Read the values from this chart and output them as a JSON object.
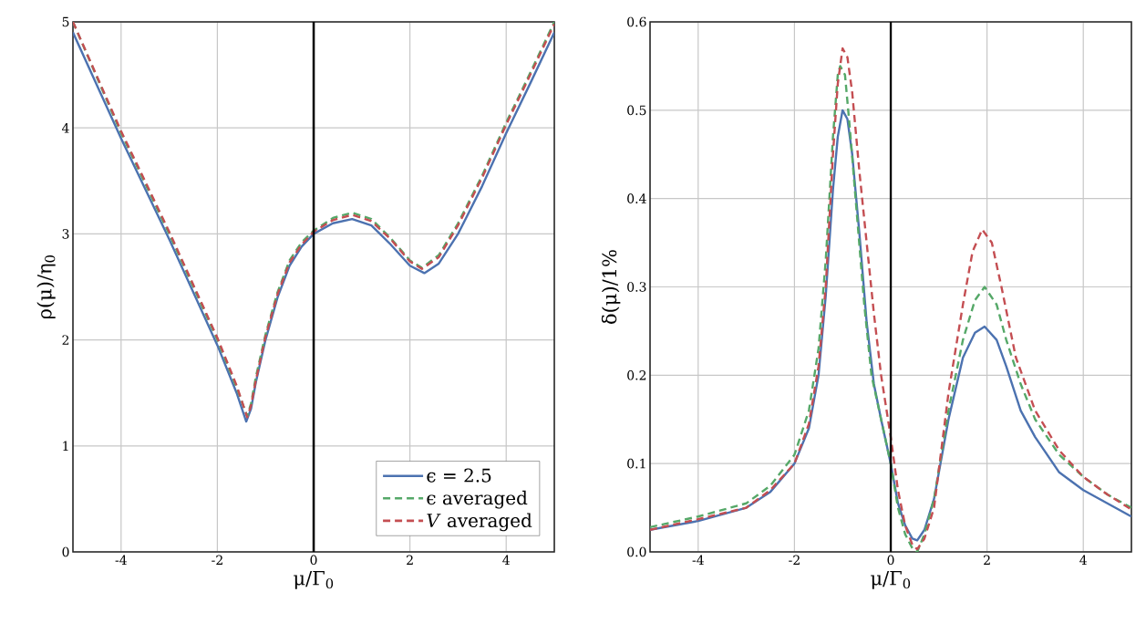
{
  "chart_data": [
    {
      "type": "line",
      "xlabel": "μ/Γ$_{0}$",
      "ylabel": "ρ(μ)/η$_{0}$",
      "xlim": [
        -5,
        5
      ],
      "ylim": [
        0,
        5
      ],
      "xticks": [
        -4,
        -2,
        0,
        2,
        4
      ],
      "yticks": [
        0,
        1,
        2,
        3,
        4,
        5
      ],
      "grid": true,
      "legend": "bottom right",
      "ref_lines": [
        {
          "axis": "x",
          "value": 0,
          "color": "#000000"
        }
      ],
      "series": [
        {
          "name": "ϵ = 2.5",
          "color": "#4c72b0",
          "line_style": "solid",
          "x": [
            -5,
            -4,
            -3,
            -2,
            -1.6,
            -1.4,
            -1.3,
            -1.2,
            -1,
            -0.75,
            -0.5,
            -0.25,
            0,
            0.4,
            0.8,
            1.2,
            1.6,
            2,
            2.3,
            2.6,
            3,
            3.5,
            4,
            4.5,
            5
          ],
          "values": [
            4.9,
            3.9,
            2.95,
            1.95,
            1.5,
            1.23,
            1.35,
            1.6,
            2.0,
            2.4,
            2.7,
            2.88,
            3.0,
            3.1,
            3.14,
            3.08,
            2.9,
            2.7,
            2.63,
            2.72,
            3.0,
            3.45,
            3.95,
            4.42,
            4.9
          ]
        },
        {
          "name": "ϵ averaged",
          "color": "#55a868",
          "line_style": "dashed",
          "x": [
            -5,
            -4,
            -3,
            -2,
            -1.6,
            -1.38,
            -1.3,
            -1.2,
            -1,
            -0.75,
            -0.5,
            -0.25,
            0,
            0.4,
            0.8,
            1.2,
            1.6,
            2,
            2.25,
            2.6,
            3,
            3.5,
            4,
            4.5,
            5
          ],
          "values": [
            5.0,
            3.95,
            3.0,
            2.0,
            1.55,
            1.28,
            1.4,
            1.65,
            2.05,
            2.45,
            2.75,
            2.92,
            3.03,
            3.15,
            3.2,
            3.14,
            2.96,
            2.75,
            2.68,
            2.8,
            3.1,
            3.55,
            4.05,
            4.52,
            5.0
          ]
        },
        {
          "name": "*V* averaged",
          "color": "#c44e52",
          "line_style": "dashed",
          "x": [
            -5,
            -4,
            -3,
            -2,
            -1.6,
            -1.38,
            -1.3,
            -1.2,
            -1,
            -0.75,
            -0.5,
            -0.25,
            0,
            0.4,
            0.8,
            1.2,
            1.6,
            2,
            2.25,
            2.6,
            3,
            3.5,
            4,
            4.5,
            5
          ],
          "values": [
            5.0,
            3.97,
            3.02,
            2.02,
            1.57,
            1.27,
            1.38,
            1.62,
            2.03,
            2.43,
            2.73,
            2.9,
            3.02,
            3.13,
            3.18,
            3.12,
            2.95,
            2.74,
            2.67,
            2.78,
            3.08,
            3.53,
            4.03,
            4.5,
            4.98
          ]
        }
      ]
    },
    {
      "type": "line",
      "xlabel": "μ/Γ$_{0}$",
      "ylabel": "δ(μ)/1%",
      "xlim": [
        -5,
        5
      ],
      "ylim": [
        0,
        0.6
      ],
      "xticks": [
        -4,
        -2,
        0,
        2,
        4
      ],
      "yticks": [
        {
          "value": 0,
          "label": "0.0"
        },
        0.1,
        0.2,
        0.3,
        0.4,
        0.5,
        0.6
      ],
      "grid": true,
      "ref_lines": [
        {
          "axis": "x",
          "value": 0,
          "color": "#000000"
        }
      ],
      "series": [
        {
          "color": "#4c72b0",
          "line_style": "solid",
          "x": [
            -5,
            -4,
            -3,
            -2.5,
            -2,
            -1.7,
            -1.5,
            -1.35,
            -1.2,
            -1.1,
            -1,
            -0.9,
            -0.8,
            -0.65,
            -0.5,
            -0.35,
            -0.2,
            0,
            0.15,
            0.3,
            0.45,
            0.55,
            0.7,
            0.9,
            1.2,
            1.5,
            1.75,
            1.95,
            2.2,
            2.4,
            2.7,
            3,
            3.5,
            4,
            4.5,
            5
          ],
          "values": [
            0.025,
            0.035,
            0.05,
            0.068,
            0.1,
            0.14,
            0.2,
            0.29,
            0.41,
            0.47,
            0.5,
            0.49,
            0.45,
            0.36,
            0.26,
            0.19,
            0.15,
            0.1,
            0.055,
            0.03,
            0.015,
            0.013,
            0.025,
            0.06,
            0.15,
            0.22,
            0.248,
            0.255,
            0.24,
            0.21,
            0.16,
            0.13,
            0.09,
            0.07,
            0.055,
            0.04
          ]
        },
        {
          "color": "#55a868",
          "line_style": "dashed",
          "x": [
            -5,
            -4,
            -3,
            -2.5,
            -2,
            -1.7,
            -1.5,
            -1.35,
            -1.2,
            -1.1,
            -1.05,
            -0.95,
            -0.85,
            -0.7,
            -0.55,
            -0.4,
            -0.2,
            0,
            0.15,
            0.3,
            0.45,
            0.55,
            0.7,
            0.9,
            1.2,
            1.5,
            1.75,
            1.95,
            2.2,
            2.4,
            2.7,
            3,
            3.5,
            4,
            4.5,
            5
          ],
          "values": [
            0.028,
            0.04,
            0.055,
            0.075,
            0.11,
            0.16,
            0.23,
            0.33,
            0.47,
            0.54,
            0.55,
            0.54,
            0.48,
            0.38,
            0.28,
            0.2,
            0.15,
            0.1,
            0.05,
            0.02,
            0.004,
            0.0,
            0.02,
            0.06,
            0.16,
            0.24,
            0.285,
            0.3,
            0.28,
            0.24,
            0.19,
            0.15,
            0.11,
            0.085,
            0.065,
            0.05
          ]
        },
        {
          "color": "#c44e52",
          "line_style": "dashed",
          "x": [
            -5,
            -4,
            -3,
            -2.5,
            -2,
            -1.7,
            -1.5,
            -1.35,
            -1.2,
            -1.1,
            -1,
            -0.9,
            -0.8,
            -0.65,
            -0.5,
            -0.35,
            -0.2,
            0,
            0.15,
            0.3,
            0.45,
            0.55,
            0.7,
            0.9,
            1.2,
            1.5,
            1.7,
            1.9,
            2.1,
            2.3,
            2.6,
            3,
            3.5,
            4,
            4.5,
            5
          ],
          "values": [
            0.025,
            0.037,
            0.05,
            0.07,
            0.1,
            0.145,
            0.21,
            0.3,
            0.45,
            0.53,
            0.57,
            0.56,
            0.52,
            0.43,
            0.35,
            0.27,
            0.2,
            0.13,
            0.07,
            0.03,
            0.008,
            0.003,
            0.015,
            0.05,
            0.18,
            0.28,
            0.34,
            0.365,
            0.35,
            0.3,
            0.22,
            0.16,
            0.115,
            0.085,
            0.065,
            0.048
          ]
        }
      ]
    }
  ]
}
